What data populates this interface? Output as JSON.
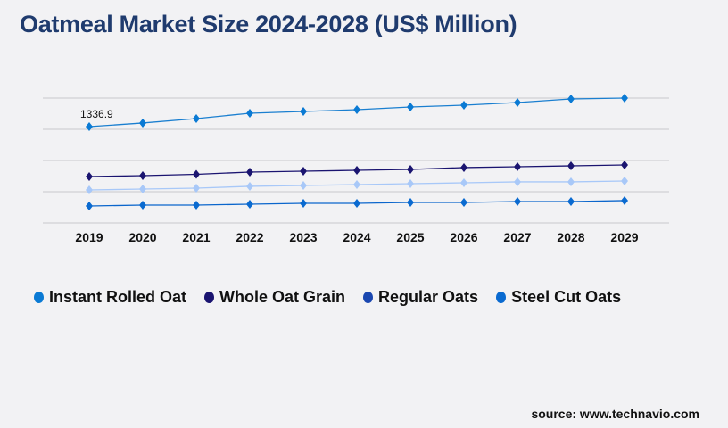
{
  "chart_data": {
    "type": "line",
    "title": "Oatmeal Market Size 2024-2028 (US$ Million)",
    "xlabel": "",
    "ylabel": "",
    "categories": [
      "2019",
      "2020",
      "2021",
      "2022",
      "2023",
      "2024",
      "2025",
      "2026",
      "2027",
      "2028",
      "2029"
    ],
    "ylim": [
      0,
      1733
    ],
    "grid": true,
    "legend_position": "bottom-left",
    "annotations": [
      "1336.9"
    ],
    "series": [
      {
        "name": "Instant Rolled Oat",
        "color": "#1a7fd0",
        "marker_color": "#0a7ad4",
        "values": [
          1336.9,
          1387,
          1448,
          1523,
          1547,
          1572,
          1609,
          1634,
          1671,
          1721,
          1733
        ]
      },
      {
        "name": "Whole Oat Grain",
        "color": "#1a1470",
        "marker_color": "#1a1470",
        "values": [
          644,
          656,
          675,
          706,
          718,
          730,
          743,
          768,
          780,
          792,
          805
        ]
      },
      {
        "name": "Regular Oats",
        "color": "#a8c8f8",
        "marker_color": "#1a47b0",
        "values": [
          458,
          470,
          483,
          508,
          520,
          532,
          545,
          557,
          570,
          570,
          582
        ]
      },
      {
        "name": "Steel Cut Oats",
        "color": "#0b66cc",
        "marker_color": "#0a6ad0",
        "values": [
          235,
          248,
          248,
          260,
          272,
          272,
          285,
          285,
          297,
          297,
          310
        ]
      }
    ]
  },
  "source": "source: www.technavio.com"
}
